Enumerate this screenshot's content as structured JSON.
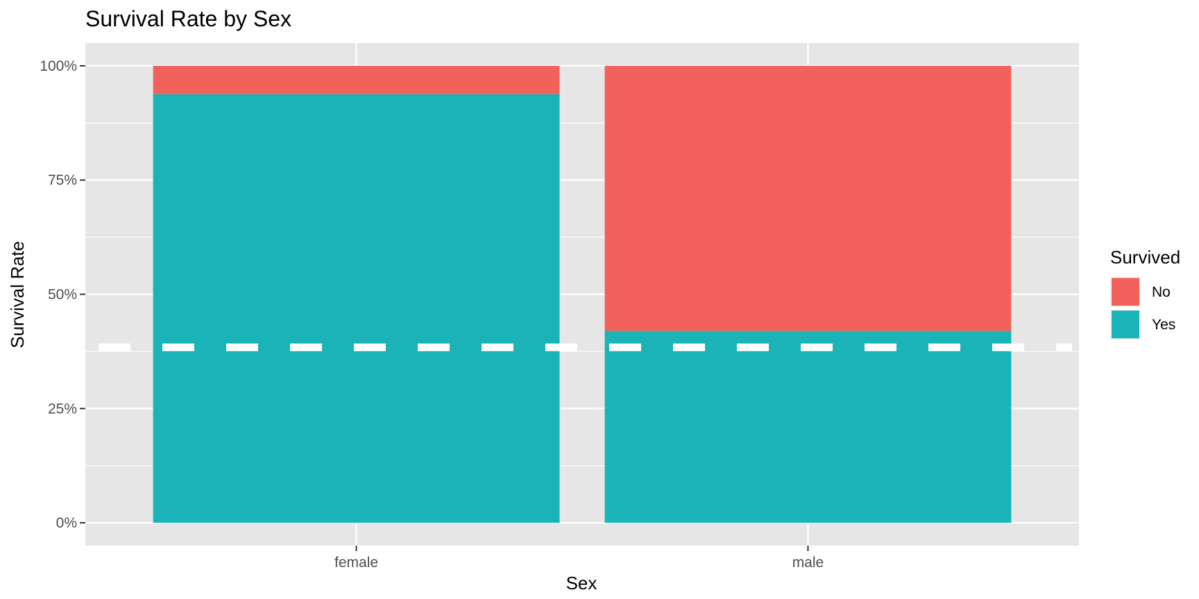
{
  "chart_data": {
    "type": "bar",
    "stacked": true,
    "title": "Survival Rate by Sex",
    "xlabel": "Sex",
    "ylabel": "Survival Rate",
    "categories": [
      "female",
      "male"
    ],
    "series": [
      {
        "name": "No",
        "values": [
          0.062,
          0.58
        ],
        "color": "#F3615D"
      },
      {
        "name": "Yes",
        "values": [
          0.938,
          0.42
        ],
        "color": "#1AB3B7"
      }
    ],
    "stack_order": [
      "No",
      "Yes"
    ],
    "ylim": [
      -0.05,
      1.05
    ],
    "y_ticks": [
      0,
      0.25,
      0.5,
      0.75,
      1
    ],
    "y_tick_labels": [
      "0%",
      "25%",
      "50%",
      "75%",
      "100%"
    ],
    "reference_line": {
      "value": 0.384,
      "style": "dashed",
      "color": "#FFFFFF"
    },
    "legend": {
      "title": "Survived",
      "position": "right",
      "items": [
        "No",
        "Yes"
      ]
    },
    "grid": true,
    "panel_background": "#E6E6E6",
    "grid_color": "#FFFFFF"
  }
}
